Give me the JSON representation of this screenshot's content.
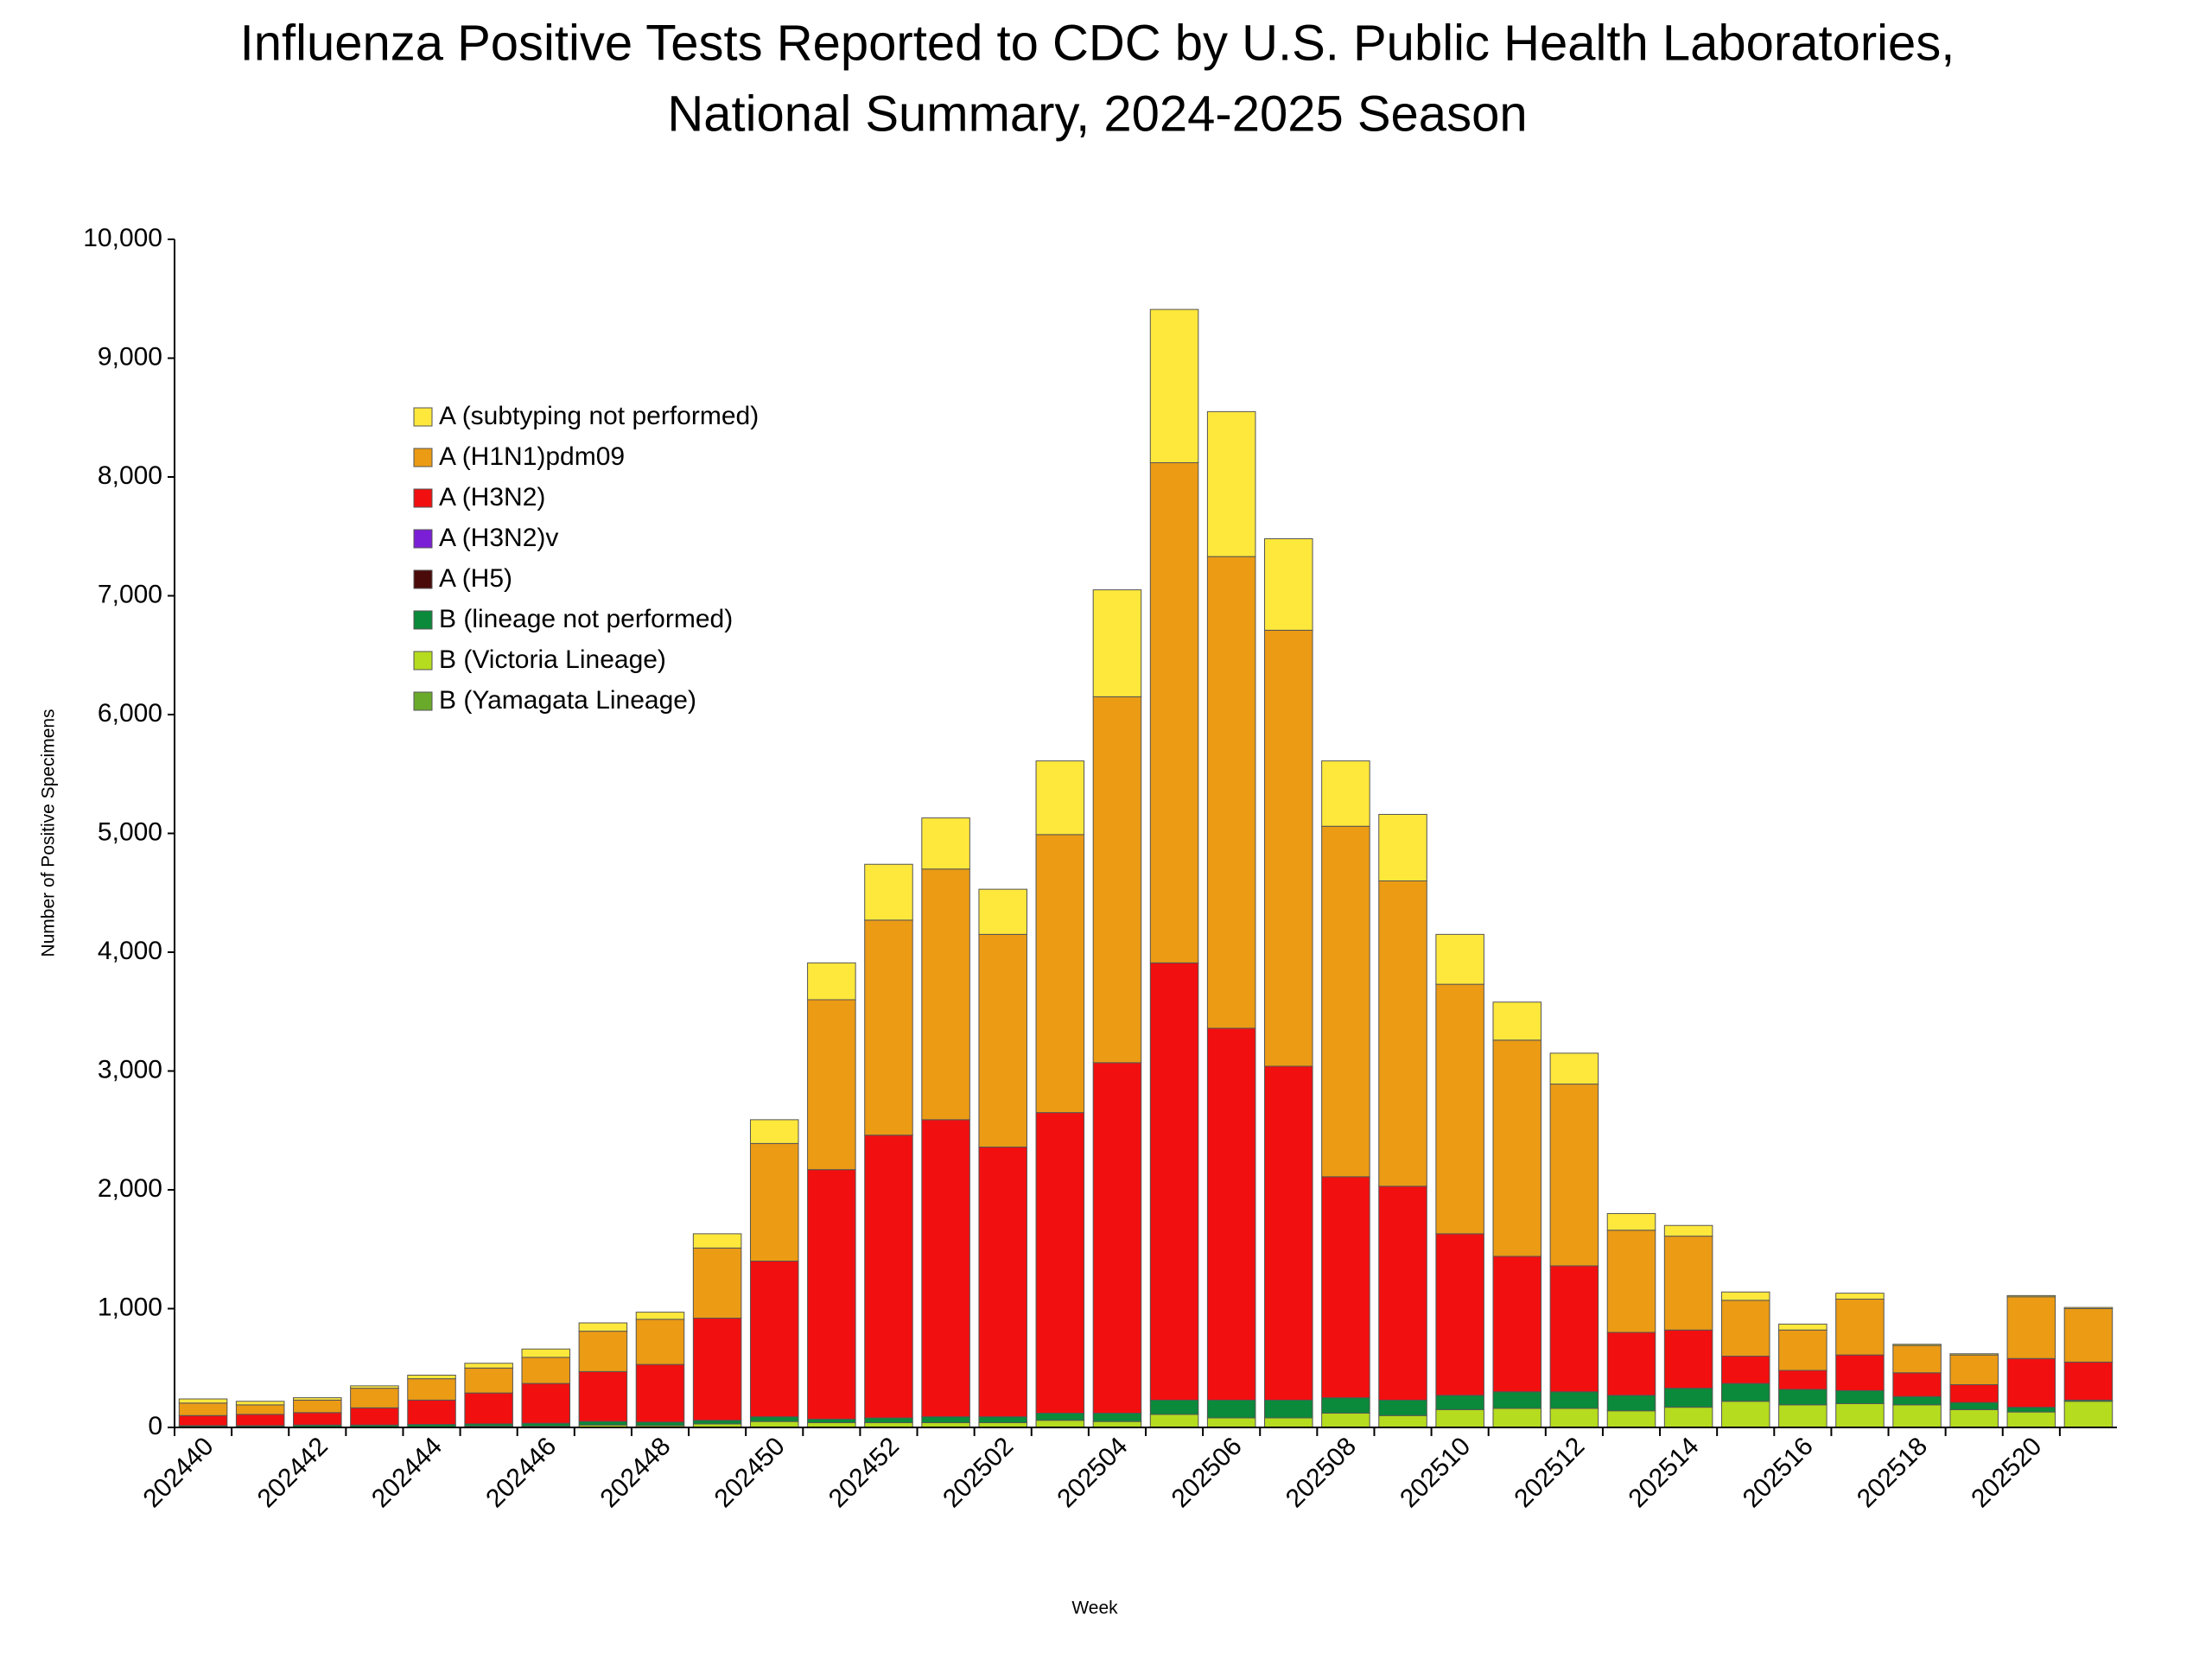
{
  "chart_data": {
    "type": "stacked-bar",
    "title": [
      "Influenza Positive Tests Reported to CDC by U.S. Public Health Laboratories,",
      "National Summary, 2024-2025 Season"
    ],
    "x_label": "Week",
    "y_label": "Number of Positive Specimens",
    "categories": [
      "202440",
      null,
      "202442",
      null,
      "202444",
      null,
      "202446",
      null,
      "202448",
      null,
      "202450",
      null,
      "202452",
      null,
      "202502",
      null,
      "202504",
      null,
      "202506",
      null,
      "202508",
      null,
      "202510",
      null,
      "202512",
      null,
      "202514",
      null,
      "202516",
      null,
      "202518",
      null,
      "202520",
      null
    ],
    "ylim": [
      0,
      10000
    ],
    "yticks": [
      0,
      {
        "value": 1000,
        "label": "1,000"
      },
      {
        "value": 2000,
        "label": "2,000"
      },
      {
        "value": 3000,
        "label": "3,000"
      },
      {
        "value": 4000,
        "label": "4,000"
      },
      {
        "value": 5000,
        "label": "5,000"
      },
      {
        "value": 6000,
        "label": "6,000"
      },
      {
        "value": 7000,
        "label": "7,000"
      },
      {
        "value": 8000,
        "label": "8,000"
      },
      {
        "value": 9000,
        "label": "9,000"
      },
      {
        "value": 10000,
        "label": "10,000"
      }
    ],
    "grid": false,
    "legend": "upper-left",
    "series": [
      {
        "name": "A (subtyping not performed)",
        "color": "#FFE83C",
        "values": [
          35,
          30,
          20,
          20,
          30,
          40,
          70,
          70,
          60,
          120,
          200,
          310,
          470,
          430,
          380,
          620,
          900,
          1290,
          1220,
          770,
          550,
          560,
          420,
          320,
          260,
          140,
          90,
          70,
          50,
          50,
          10,
          10,
          10,
          10
        ]
      },
      {
        "name": "A (H1N1)pdm09",
        "color": "#EB9B14",
        "values": [
          105,
          80,
          105,
          165,
          180,
          210,
          220,
          340,
          380,
          590,
          990,
          1430,
          1810,
          2110,
          1790,
          2340,
          3080,
          4210,
          3970,
          3670,
          2950,
          2570,
          2100,
          1820,
          1530,
          860,
          790,
          470,
          340,
          470,
          230,
          250,
          520,
          450
        ]
      },
      {
        "name": "A (H3N2)",
        "color": "#F20F0F",
        "values": [
          85,
          95,
          105,
          145,
          205,
          260,
          335,
          420,
          485,
          860,
          1310,
          2100,
          2380,
          2500,
          2270,
          2530,
          2950,
          3680,
          3130,
          2810,
          1860,
          1800,
          1360,
          1140,
          1060,
          530,
          490,
          230,
          160,
          300,
          200,
          150,
          410,
          320
        ]
      },
      {
        "name": "A (H3N2)v",
        "color": "#7B1FD6",
        "values": [
          0,
          0,
          0,
          0,
          0,
          0,
          0,
          0,
          0,
          0,
          0,
          0,
          0,
          0,
          0,
          0,
          0,
          0,
          0,
          0,
          0,
          0,
          0,
          0,
          0,
          0,
          0,
          0,
          0,
          0,
          0,
          0,
          0,
          0
        ]
      },
      {
        "name": "A (H5)",
        "color": "#4A0A0A",
        "values": [
          0,
          0,
          0,
          0,
          0,
          0,
          0,
          0,
          0,
          0,
          0,
          0,
          0,
          0,
          0,
          0,
          0,
          0,
          0,
          0,
          0,
          0,
          0,
          0,
          0,
          0,
          0,
          0,
          0,
          0,
          0,
          0,
          0,
          0
        ]
      },
      {
        "name": "B (lineage not performed)",
        "color": "#0A8A3A",
        "values": [
          10,
          10,
          15,
          15,
          20,
          20,
          25,
          30,
          30,
          30,
          40,
          30,
          40,
          50,
          50,
          60,
          70,
          120,
          150,
          150,
          130,
          130,
          120,
          140,
          140,
          130,
          160,
          150,
          130,
          110,
          70,
          60,
          40,
          10
        ]
      },
      {
        "name": "B (Victoria Lineage)",
        "color": "#B5DC1E",
        "values": [
          5,
          5,
          5,
          5,
          5,
          10,
          10,
          20,
          15,
          30,
          50,
          40,
          40,
          40,
          40,
          60,
          50,
          110,
          80,
          80,
          120,
          100,
          150,
          160,
          160,
          140,
          170,
          220,
          190,
          200,
          190,
          150,
          130,
          220
        ]
      },
      {
        "name": "B (Yamagata Lineage)",
        "color": "#6AAA2A",
        "values": [
          0,
          0,
          0,
          0,
          0,
          0,
          0,
          0,
          0,
          0,
          0,
          0,
          0,
          0,
          0,
          0,
          0,
          0,
          0,
          0,
          0,
          0,
          0,
          0,
          0,
          0,
          0,
          0,
          0,
          0,
          0,
          0,
          0,
          0
        ]
      }
    ]
  }
}
